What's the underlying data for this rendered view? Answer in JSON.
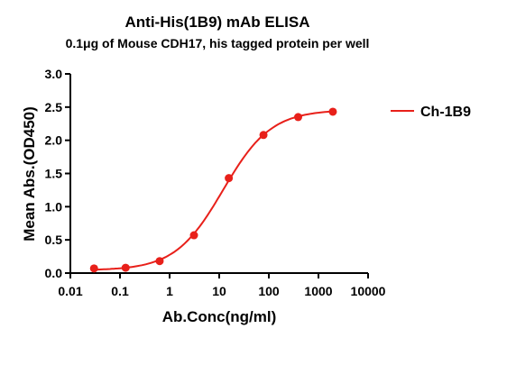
{
  "chart_data": {
    "type": "scatter",
    "title": "Anti-His(1B9) mAb ELISA",
    "subtitle": "0.1μg of Mouse CDH17, his tagged protein per well",
    "xlabel": "Ab.Conc(ng/ml)",
    "ylabel": "Mean Abs.(OD450)",
    "xscale": "log",
    "xlim": [
      0.01,
      10000
    ],
    "ylim": [
      0,
      3.0
    ],
    "xticks": [
      0.01,
      0.1,
      1,
      10,
      100,
      1000,
      10000
    ],
    "xtick_labels": [
      "0.01",
      "0.1",
      "1",
      "10",
      "100",
      "1000",
      "10000"
    ],
    "yticks": [
      0,
      0.5,
      1.0,
      1.5,
      2.0,
      2.5,
      3.0
    ],
    "ytick_labels": [
      "0.0",
      "0.5",
      "1.0",
      "1.5",
      "2.0",
      "2.5",
      "3.0"
    ],
    "grid": false,
    "legend_position": "right",
    "series": [
      {
        "name": "Ch-1B9",
        "color": "#e8201a",
        "x": [
          0.03,
          0.13,
          0.63,
          3.1,
          15.6,
          78,
          390,
          1950
        ],
        "y": [
          0.07,
          0.08,
          0.18,
          0.57,
          1.43,
          2.08,
          2.35,
          2.43
        ],
        "fit": "4PL"
      }
    ]
  }
}
